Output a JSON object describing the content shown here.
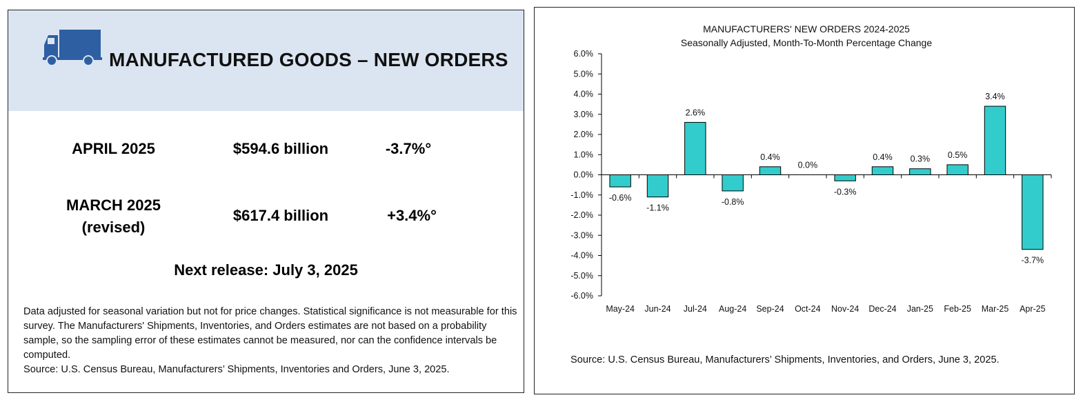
{
  "summary": {
    "title": "MANUFACTURED GOODS – NEW ORDERS",
    "rows": [
      {
        "period": "APRIL 2025",
        "period_sub": "",
        "value": "$594.6 billion",
        "change": "-3.7%°"
      },
      {
        "period": "MARCH 2025",
        "period_sub": "(revised)",
        "value": "$617.4 billion",
        "change": "+3.4%°"
      }
    ],
    "next_release": "Next release: July 3, 2025",
    "note": "Data adjusted for seasonal variation but not for price changes. Statistical significance is not measurable for this survey.  The Manufacturers' Shipments, Inventories, and Orders estimates are not based on a probability sample, so the sampling error of these estimates cannot be measured, nor can the confidence intervals be computed.",
    "source": "Source: U.S. Census Bureau, Manufacturers’ Shipments, Inventories and Orders, June 3, 2025."
  },
  "chart_data": {
    "type": "bar",
    "title": "MANUFACTURERS' NEW ORDERS 2024-2025",
    "subtitle": "Seasonally Adjusted,  Month-To-Month Percentage Change",
    "categories": [
      "May-24",
      "Jun-24",
      "Jul-24",
      "Aug-24",
      "Sep-24",
      "Oct-24",
      "Nov-24",
      "Dec-24",
      "Jan-25",
      "Feb-25",
      "Mar-25",
      "Apr-25"
    ],
    "values": [
      -0.6,
      -1.1,
      2.6,
      -0.8,
      0.4,
      0.0,
      -0.3,
      0.4,
      0.3,
      0.5,
      3.4,
      -3.7
    ],
    "data_labels": [
      "-0.6%",
      "-1.1%",
      "2.6%",
      "-0.8%",
      "0.4%",
      "0.0%",
      "-0.3%",
      "0.4%",
      "0.3%",
      "0.5%",
      "3.4%",
      "-3.7%"
    ],
    "y_ticks": [
      6,
      5,
      4,
      3,
      2,
      1,
      0,
      -1,
      -2,
      -3,
      -4,
      -5,
      -6
    ],
    "y_tick_labels": [
      "6.0%",
      "5.0%",
      "4.0%",
      "3.0%",
      "2.0%",
      "1.0%",
      "0.0%",
      "-1.0%",
      "-2.0%",
      "-3.0%",
      "-4.0%",
      "-5.0%",
      "-6.0%"
    ],
    "ylim": [
      -6,
      6
    ],
    "xlabel": "",
    "ylabel": "",
    "grid": false,
    "bar_color": "#33cccc",
    "source": "Source: U.S. Census Bureau, Manufacturers’ Shipments, Inventories, and Orders, June 3, 2025."
  }
}
